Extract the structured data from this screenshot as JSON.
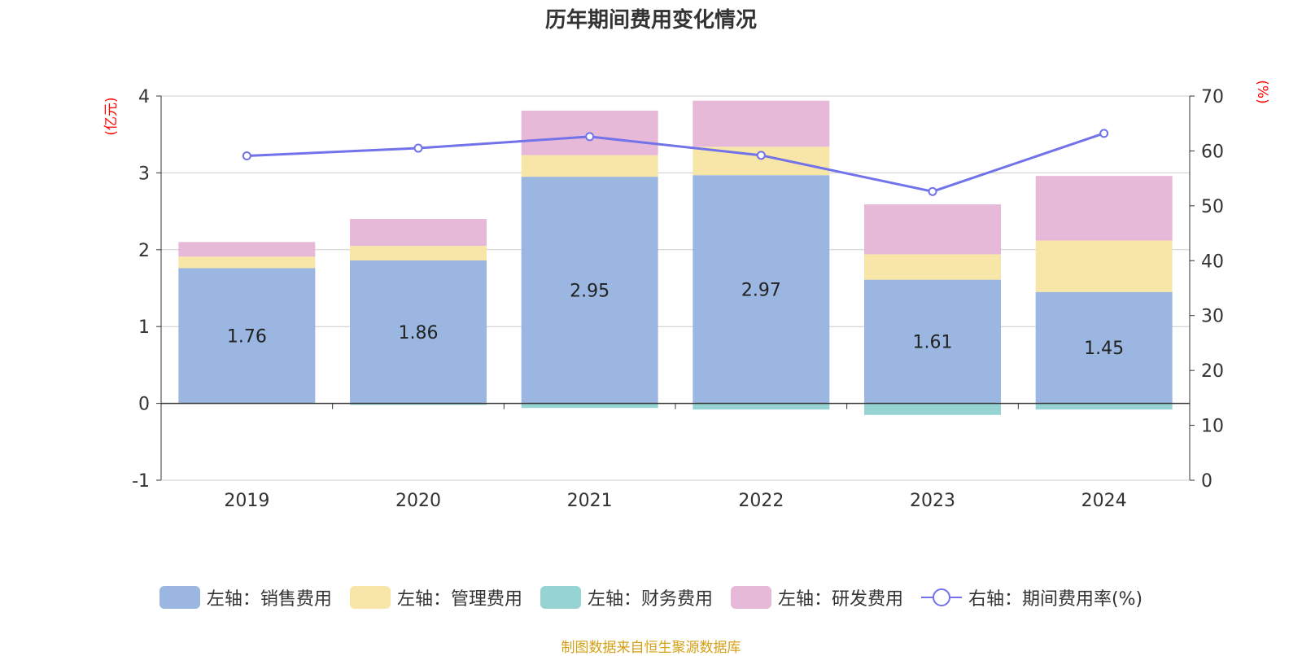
{
  "title": "历年期间费用变化情况",
  "source": "制图数据来自恒生聚源数据库",
  "colors": {
    "sales": "#9bb7e1",
    "admin": "#f7e6a7",
    "finance": "#96d3d3",
    "rd": "#e7b9d8",
    "rate": "#7272ea",
    "axis_label": "#ff0000"
  },
  "chart_data": {
    "type": "bar",
    "stacked": true,
    "categories": [
      "2019",
      "2020",
      "2021",
      "2022",
      "2023",
      "2024"
    ],
    "series": [
      {
        "name": "左轴：销售费用",
        "key": "sales",
        "axis": "left",
        "values": [
          1.76,
          1.86,
          2.95,
          2.97,
          1.61,
          1.45
        ],
        "labels": [
          "1.76",
          "1.86",
          "2.95",
          "2.97",
          "1.61",
          "1.45"
        ]
      },
      {
        "name": "左轴：管理费用",
        "key": "admin",
        "axis": "left",
        "values": [
          0.15,
          0.19,
          0.28,
          0.37,
          0.33,
          0.67
        ]
      },
      {
        "name": "左轴：财务费用",
        "key": "finance",
        "axis": "left",
        "values": [
          0.0,
          -0.02,
          -0.06,
          -0.08,
          -0.15,
          -0.08
        ]
      },
      {
        "name": "左轴：研发费用",
        "key": "rd",
        "axis": "left",
        "values": [
          0.19,
          0.35,
          0.58,
          0.6,
          0.65,
          0.84
        ]
      },
      {
        "name": "右轴：期间费用率(%)",
        "key": "rate",
        "axis": "right",
        "type": "line",
        "values": [
          59.1,
          60.5,
          62.6,
          59.2,
          52.6,
          63.2
        ]
      }
    ],
    "y_left": {
      "label": "(亿元)",
      "min": -1,
      "max": 4,
      "ticks": [
        -1,
        0,
        1,
        2,
        3,
        4
      ]
    },
    "y_right": {
      "label": "(%)",
      "min": 0,
      "max": 70,
      "ticks": [
        0,
        10,
        20,
        30,
        40,
        50,
        60,
        70
      ]
    },
    "grid": true,
    "legend": "bottom"
  }
}
